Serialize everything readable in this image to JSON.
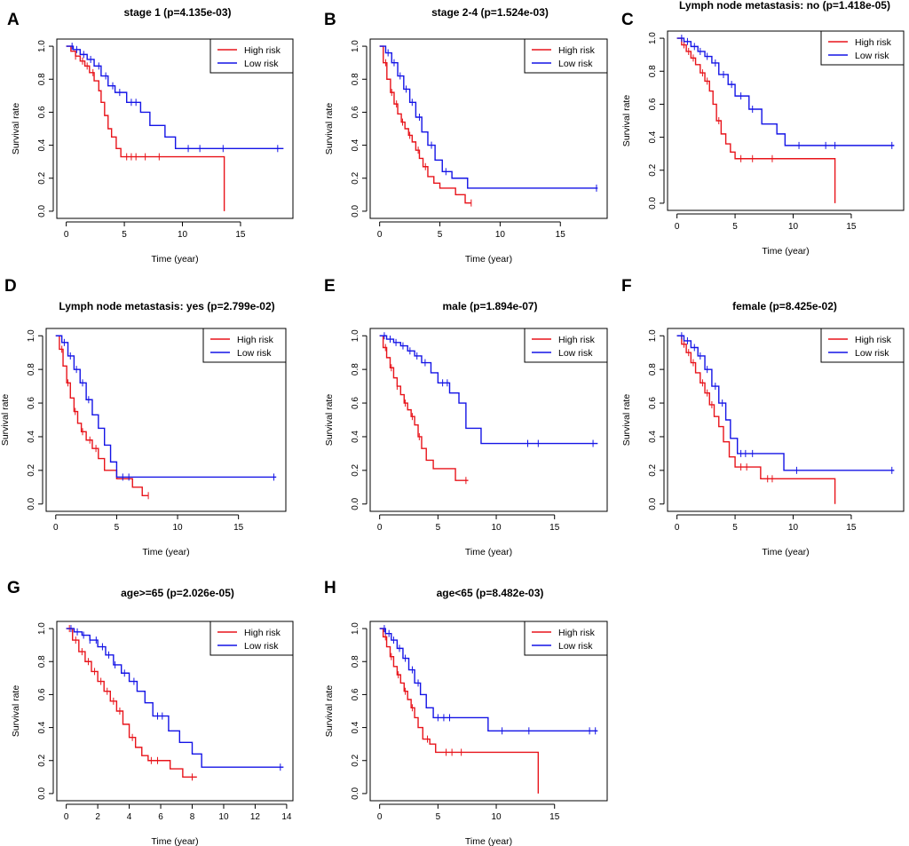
{
  "colors": {
    "high": "#e8141b",
    "low": "#1414e6"
  },
  "legend": {
    "high": "High risk",
    "low": "Low risk"
  },
  "chart_data": [
    {
      "type": "line",
      "letter": "A",
      "title": "stage 1 (p=4.135e-03)",
      "xlabel": "Time (year)",
      "ylabel": "Survival rate",
      "xlim": [
        0,
        18.7
      ],
      "ylim": [
        0,
        1
      ],
      "xticks": [
        0,
        5,
        10,
        15
      ],
      "yticks": [
        0,
        0.2,
        0.4,
        0.6,
        0.8,
        1.0
      ],
      "legend_position": "top-right",
      "series": [
        {
          "name": "High risk",
          "end_drop": true,
          "x": [
            0,
            0.4,
            0.8,
            1.2,
            1.6,
            2.0,
            2.4,
            2.8,
            3.0,
            3.3,
            3.6,
            3.9,
            4.3,
            4.7,
            13.6
          ],
          "y": [
            1.0,
            0.97,
            0.94,
            0.91,
            0.88,
            0.84,
            0.79,
            0.73,
            0.66,
            0.58,
            0.5,
            0.45,
            0.38,
            0.33,
            0.33
          ],
          "censor_x": [
            0.8,
            1.4,
            1.8,
            2.3,
            5.2,
            5.6,
            6.0,
            6.8,
            8.0
          ]
        },
        {
          "name": "Low risk",
          "end_drop": false,
          "x": [
            0,
            0.6,
            1.2,
            1.8,
            2.4,
            3.0,
            3.6,
            4.2,
            5.2,
            6.4,
            7.2,
            8.5,
            9.4,
            18.7
          ],
          "y": [
            1.0,
            0.98,
            0.95,
            0.92,
            0.88,
            0.82,
            0.76,
            0.72,
            0.66,
            0.6,
            0.52,
            0.45,
            0.38,
            0.38
          ],
          "censor_x": [
            0.5,
            0.9,
            1.5,
            2.1,
            2.8,
            3.4,
            4.0,
            4.6,
            5.6,
            6.0,
            10.5,
            11.5,
            13.5,
            18.2
          ]
        }
      ]
    },
    {
      "type": "line",
      "letter": "B",
      "title": "stage 2-4 (p=1.524e-03)",
      "xlabel": "Time (year)",
      "ylabel": "Survival rate",
      "xlim": [
        0,
        18.1
      ],
      "ylim": [
        0,
        1
      ],
      "xticks": [
        0,
        5,
        10,
        15
      ],
      "yticks": [
        0,
        0.2,
        0.4,
        0.6,
        0.8,
        1.0
      ],
      "legend_position": "top-right",
      "series": [
        {
          "name": "High risk",
          "end_drop": false,
          "x": [
            0,
            0.3,
            0.6,
            0.9,
            1.2,
            1.5,
            1.8,
            2.1,
            2.4,
            2.7,
            3.0,
            3.3,
            3.6,
            4.0,
            4.5,
            5.0,
            6.3,
            7.1,
            7.6
          ],
          "y": [
            1.0,
            0.9,
            0.8,
            0.72,
            0.65,
            0.59,
            0.54,
            0.5,
            0.46,
            0.42,
            0.37,
            0.32,
            0.27,
            0.21,
            0.17,
            0.14,
            0.1,
            0.05,
            0.05
          ],
          "censor_x": [
            0.5,
            1.0,
            1.4,
            1.9,
            2.5,
            3.2,
            3.8,
            7.6
          ]
        },
        {
          "name": "Low risk",
          "end_drop": false,
          "x": [
            0,
            0.5,
            1.0,
            1.5,
            2.0,
            2.5,
            3.0,
            3.5,
            4.0,
            4.6,
            5.2,
            6.0,
            7.3,
            18.1
          ],
          "y": [
            1.0,
            0.96,
            0.9,
            0.82,
            0.74,
            0.66,
            0.57,
            0.48,
            0.4,
            0.31,
            0.24,
            0.2,
            0.14,
            0.14
          ],
          "censor_x": [
            0.7,
            1.2,
            1.7,
            2.2,
            2.7,
            3.3,
            4.3,
            5.5,
            18.0
          ]
        }
      ]
    },
    {
      "type": "line",
      "letter": "C",
      "title": "Lymph node metastasis: no (p=1.418e-05)",
      "xlabel": "Time (year)",
      "ylabel": "Survival rate",
      "xlim": [
        0,
        18.7
      ],
      "ylim": [
        0,
        1
      ],
      "xticks": [
        0,
        5,
        10,
        15
      ],
      "yticks": [
        0,
        0.2,
        0.4,
        0.6,
        0.8,
        1.0
      ],
      "legend_position": "top-right",
      "series": [
        {
          "name": "High risk",
          "end_drop": true,
          "x": [
            0,
            0.4,
            0.8,
            1.2,
            1.6,
            2.0,
            2.4,
            2.8,
            3.1,
            3.4,
            3.8,
            4.2,
            4.6,
            5.0,
            13.6
          ],
          "y": [
            1.0,
            0.96,
            0.92,
            0.88,
            0.84,
            0.79,
            0.74,
            0.68,
            0.6,
            0.5,
            0.42,
            0.36,
            0.31,
            0.27,
            0.27
          ],
          "censor_x": [
            0.6,
            1.0,
            1.4,
            2.2,
            2.6,
            3.6,
            5.5,
            6.5,
            8.2
          ]
        },
        {
          "name": "Low risk",
          "end_drop": false,
          "x": [
            0,
            0.6,
            1.2,
            1.8,
            2.4,
            3.0,
            3.6,
            4.4,
            5.0,
            6.2,
            7.3,
            8.6,
            9.3,
            18.7
          ],
          "y": [
            1.0,
            0.98,
            0.95,
            0.92,
            0.89,
            0.85,
            0.78,
            0.72,
            0.65,
            0.57,
            0.48,
            0.42,
            0.35,
            0.35
          ],
          "censor_x": [
            0.4,
            0.9,
            1.5,
            2.0,
            2.6,
            3.3,
            4.0,
            4.7,
            5.5,
            6.5,
            10.5,
            12.8,
            13.6,
            18.5
          ]
        }
      ]
    },
    {
      "type": "line",
      "letter": "D",
      "title": "Lymph node metastasis: yes (p=2.799e-02)",
      "xlabel": "Time (year)",
      "ylabel": "Survival rate",
      "xlim": [
        0,
        18.1
      ],
      "ylim": [
        0,
        1
      ],
      "xticks": [
        0,
        5,
        10,
        15
      ],
      "yticks": [
        0,
        0.2,
        0.4,
        0.6,
        0.8,
        1.0
      ],
      "legend_position": "top-right",
      "series": [
        {
          "name": "High risk",
          "end_drop": false,
          "x": [
            0,
            0.3,
            0.6,
            0.9,
            1.2,
            1.5,
            1.8,
            2.1,
            2.5,
            3.0,
            3.5,
            4.0,
            5.0,
            6.3,
            7.1,
            7.6
          ],
          "y": [
            1.0,
            0.92,
            0.82,
            0.72,
            0.63,
            0.55,
            0.48,
            0.43,
            0.38,
            0.33,
            0.27,
            0.2,
            0.15,
            0.1,
            0.05,
            0.05
          ],
          "censor_x": [
            0.5,
            1.0,
            1.6,
            2.2,
            2.8,
            3.3,
            7.6
          ]
        },
        {
          "name": "Low risk",
          "end_drop": false,
          "x": [
            0,
            0.5,
            1.0,
            1.5,
            2.0,
            2.5,
            3.0,
            3.5,
            4.0,
            4.5,
            5.0,
            18.1
          ],
          "y": [
            1.0,
            0.96,
            0.88,
            0.8,
            0.72,
            0.62,
            0.53,
            0.45,
            0.35,
            0.25,
            0.16,
            0.16
          ],
          "censor_x": [
            0.7,
            1.2,
            1.7,
            2.2,
            2.7,
            5.5,
            6.0,
            17.9
          ]
        }
      ]
    },
    {
      "type": "line",
      "letter": "E",
      "title": "male (p=1.894e-07)",
      "xlabel": "Time (year)",
      "ylabel": "Survival rate",
      "xlim": [
        0,
        18.7
      ],
      "ylim": [
        0,
        1
      ],
      "xticks": [
        0,
        5,
        10,
        15
      ],
      "yticks": [
        0,
        0.2,
        0.4,
        0.6,
        0.8,
        1.0
      ],
      "legend_position": "top-right",
      "series": [
        {
          "name": "High risk",
          "end_drop": false,
          "x": [
            0,
            0.3,
            0.6,
            0.9,
            1.2,
            1.5,
            1.8,
            2.1,
            2.4,
            2.7,
            3.0,
            3.3,
            3.6,
            4.0,
            4.6,
            6.5,
            7.6
          ],
          "y": [
            1.0,
            0.93,
            0.87,
            0.81,
            0.75,
            0.7,
            0.65,
            0.6,
            0.56,
            0.52,
            0.47,
            0.4,
            0.33,
            0.26,
            0.21,
            0.14,
            0.14
          ],
          "censor_x": [
            0.5,
            1.0,
            1.5,
            2.2,
            2.8,
            3.4,
            7.4
          ]
        },
        {
          "name": "Low risk",
          "end_drop": false,
          "x": [
            0,
            0.6,
            1.2,
            1.8,
            2.4,
            3.0,
            3.6,
            4.4,
            5.0,
            6.0,
            6.8,
            7.4,
            8.7,
            18.7
          ],
          "y": [
            1.0,
            0.98,
            0.96,
            0.94,
            0.91,
            0.88,
            0.84,
            0.78,
            0.72,
            0.66,
            0.6,
            0.45,
            0.36,
            0.36
          ],
          "censor_x": [
            0.4,
            0.9,
            1.4,
            2.0,
            2.6,
            3.2,
            3.9,
            5.4,
            5.8,
            12.7,
            13.6,
            18.3
          ]
        }
      ]
    },
    {
      "type": "line",
      "letter": "F",
      "title": "female (p=8.425e-02)",
      "xlabel": "Time (year)",
      "ylabel": "Survival rate",
      "xlim": [
        0,
        18.7
      ],
      "ylim": [
        0,
        1
      ],
      "xticks": [
        0,
        5,
        10,
        15
      ],
      "yticks": [
        0,
        0.2,
        0.4,
        0.6,
        0.8,
        1.0
      ],
      "legend_position": "top-right",
      "series": [
        {
          "name": "High risk",
          "end_drop": true,
          "x": [
            0,
            0.4,
            0.8,
            1.2,
            1.6,
            2.0,
            2.4,
            2.8,
            3.2,
            3.6,
            4.0,
            4.5,
            5.0,
            7.2,
            13.6
          ],
          "y": [
            1.0,
            0.95,
            0.9,
            0.84,
            0.78,
            0.72,
            0.66,
            0.59,
            0.52,
            0.46,
            0.37,
            0.28,
            0.22,
            0.15,
            0.15
          ],
          "censor_x": [
            0.6,
            1.0,
            1.4,
            2.2,
            2.6,
            3.0,
            5.5,
            6.0,
            7.8,
            8.2
          ]
        },
        {
          "name": "Low risk",
          "end_drop": false,
          "x": [
            0,
            0.6,
            1.2,
            1.8,
            2.4,
            3.0,
            3.6,
            4.2,
            4.6,
            5.2,
            9.2,
            18.7
          ],
          "y": [
            1.0,
            0.97,
            0.93,
            0.88,
            0.8,
            0.7,
            0.6,
            0.5,
            0.39,
            0.3,
            0.2,
            0.2
          ],
          "censor_x": [
            0.4,
            0.9,
            1.5,
            2.0,
            2.6,
            3.3,
            3.9,
            5.5,
            5.9,
            6.5,
            10.3,
            18.5
          ]
        }
      ]
    },
    {
      "type": "line",
      "letter": "G",
      "title": "age>=65 (p=2.026e-05)",
      "xlabel": "Time (year)",
      "ylabel": "Survival rate",
      "xlim": [
        0,
        13.8
      ],
      "ylim": [
        0,
        1
      ],
      "xticks": [
        0,
        2,
        4,
        6,
        8,
        10,
        12,
        14
      ],
      "yticks": [
        0,
        0.2,
        0.4,
        0.6,
        0.8,
        1.0
      ],
      "legend_position": "top-right",
      "series": [
        {
          "name": "High risk",
          "end_drop": false,
          "x": [
            0,
            0.4,
            0.8,
            1.2,
            1.6,
            2.0,
            2.4,
            2.8,
            3.2,
            3.6,
            4.0,
            4.4,
            4.8,
            5.2,
            6.6,
            7.4,
            8.3
          ],
          "y": [
            1.0,
            0.93,
            0.86,
            0.8,
            0.74,
            0.68,
            0.62,
            0.56,
            0.5,
            0.42,
            0.34,
            0.28,
            0.23,
            0.2,
            0.15,
            0.1,
            0.1
          ],
          "censor_x": [
            0.2,
            0.6,
            1.0,
            1.4,
            1.8,
            2.2,
            2.6,
            3.0,
            3.4,
            4.2,
            5.4,
            5.8,
            8.0
          ]
        },
        {
          "name": "Low risk",
          "end_drop": false,
          "x": [
            0,
            0.5,
            1.0,
            1.5,
            2.0,
            2.5,
            3.0,
            3.5,
            4.0,
            4.5,
            5.0,
            5.5,
            6.5,
            7.2,
            8.0,
            8.6,
            13.8
          ],
          "y": [
            1.0,
            0.98,
            0.96,
            0.93,
            0.89,
            0.84,
            0.78,
            0.73,
            0.68,
            0.62,
            0.55,
            0.47,
            0.38,
            0.31,
            0.24,
            0.16,
            0.16
          ],
          "censor_x": [
            0.3,
            0.7,
            1.1,
            1.5,
            1.9,
            2.3,
            2.7,
            3.1,
            3.7,
            4.3,
            5.8,
            6.1,
            13.6
          ]
        }
      ]
    },
    {
      "type": "line",
      "letter": "H",
      "title": "age<65 (p=8.482e-03)",
      "xlabel": "Time (year)",
      "ylabel": "Survival rate",
      "xlim": [
        0,
        18.7
      ],
      "ylim": [
        0,
        1
      ],
      "xticks": [
        0,
        5,
        10,
        15
      ],
      "yticks": [
        0,
        0.2,
        0.4,
        0.6,
        0.8,
        1.0
      ],
      "legend_position": "top-right",
      "series": [
        {
          "name": "High risk",
          "end_drop": true,
          "x": [
            0,
            0.3,
            0.6,
            0.9,
            1.2,
            1.5,
            1.8,
            2.1,
            2.4,
            2.7,
            3.0,
            3.3,
            3.7,
            4.3,
            4.8,
            13.6
          ],
          "y": [
            1.0,
            0.95,
            0.89,
            0.83,
            0.77,
            0.72,
            0.67,
            0.62,
            0.57,
            0.52,
            0.46,
            0.4,
            0.33,
            0.3,
            0.25,
            0.25
          ],
          "censor_x": [
            0.5,
            1.0,
            1.6,
            2.2,
            2.8,
            4.1,
            5.7,
            6.2,
            7.0
          ]
        },
        {
          "name": "Low risk",
          "end_drop": false,
          "x": [
            0,
            0.5,
            1.0,
            1.5,
            2.0,
            2.5,
            3.0,
            3.5,
            4.0,
            4.6,
            9.3,
            18.7
          ],
          "y": [
            1.0,
            0.97,
            0.93,
            0.88,
            0.82,
            0.75,
            0.67,
            0.6,
            0.52,
            0.46,
            0.38,
            0.38
          ],
          "censor_x": [
            0.4,
            0.8,
            1.2,
            1.7,
            2.2,
            2.8,
            3.3,
            5.0,
            5.5,
            6.0,
            10.5,
            12.8,
            18.0,
            18.5
          ]
        }
      ]
    }
  ]
}
